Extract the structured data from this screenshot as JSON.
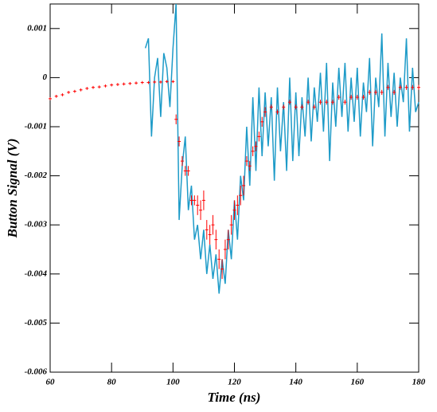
{
  "chart_data": {
    "type": "line",
    "x_label": "Time (ns)",
    "y_label": "Button Signal (V)",
    "xlim": [
      60,
      180
    ],
    "xticks": [
      60,
      80,
      100,
      120,
      140,
      160,
      180
    ],
    "ylim": [
      -0.006,
      0.0015
    ],
    "yticks": [
      0.001,
      0,
      -0.001,
      -0.002,
      -0.003,
      -0.004,
      -0.005,
      -0.006
    ],
    "grid": false,
    "series": [
      {
        "type": "line",
        "color": "#1e9bc8",
        "x": [
          91,
          92,
          93,
          94,
          95,
          96,
          97,
          98,
          99,
          100,
          101,
          102,
          103,
          104,
          105,
          106,
          107,
          108,
          109,
          110,
          111,
          112,
          113,
          114,
          115,
          116,
          117,
          118,
          119,
          120,
          121,
          122,
          123,
          124,
          125,
          126,
          127,
          128,
          129,
          130,
          131,
          132,
          133,
          134,
          135,
          136,
          137,
          138,
          139,
          140,
          141,
          142,
          143,
          144,
          145,
          146,
          147,
          148,
          149,
          150,
          151,
          152,
          153,
          154,
          155,
          156,
          157,
          158,
          159,
          160,
          161,
          162,
          163,
          164,
          165,
          166,
          167,
          168,
          169,
          170,
          171,
          172,
          173,
          174,
          175,
          176,
          177,
          178,
          179,
          180
        ],
        "values": [
          0.0006,
          0.0008,
          -0.0012,
          0.0,
          0.0004,
          -0.0008,
          0.0005,
          0.0002,
          -0.0006,
          0.0006,
          0.0015,
          -0.0029,
          -0.0018,
          -0.0012,
          -0.0027,
          -0.0022,
          -0.0033,
          -0.003,
          -0.0037,
          -0.0031,
          -0.004,
          -0.0034,
          -0.0041,
          -0.0036,
          -0.0044,
          -0.0037,
          -0.0042,
          -0.0031,
          -0.0037,
          -0.0025,
          -0.0033,
          -0.002,
          -0.0025,
          -0.001,
          -0.0022,
          -0.0004,
          -0.0019,
          -0.0002,
          -0.0016,
          -0.0003,
          -0.0014,
          -0.0004,
          -0.0021,
          -0.0002,
          -0.0015,
          -0.0005,
          -0.0019,
          0.0,
          -0.0017,
          -0.0003,
          -0.0016,
          -0.0004,
          -0.0012,
          0.0,
          -0.0013,
          -0.0002,
          -0.0009,
          0.0001,
          -0.0011,
          0.0003,
          -0.0017,
          -0.0001,
          -0.001,
          0.0002,
          -0.0008,
          0.0003,
          -0.0011,
          0.0,
          -0.0009,
          0.0002,
          -0.0012,
          -0.0001,
          -0.0007,
          0.0004,
          -0.0014,
          0.0,
          -0.0006,
          0.0009,
          -0.0012,
          0.0003,
          -0.0008,
          0.0001,
          -0.001,
          0.0,
          -0.0005,
          0.0008,
          -0.0011,
          0.0002,
          -0.0007,
          -0.0005
        ]
      },
      {
        "type": "errorbar",
        "color": "#ff0000",
        "x": [
          60,
          62,
          64,
          66,
          68,
          70,
          72,
          74,
          76,
          78,
          80,
          82,
          84,
          86,
          88,
          90,
          92,
          94,
          96,
          98,
          100,
          101,
          102,
          103,
          104,
          105,
          106,
          107,
          108,
          109,
          110,
          111,
          112,
          113,
          114,
          115,
          116,
          117,
          118,
          119,
          120,
          121,
          122,
          123,
          124,
          125,
          126,
          127,
          128,
          129,
          130,
          132,
          134,
          136,
          138,
          140,
          142,
          144,
          146,
          148,
          150,
          152,
          154,
          156,
          158,
          160,
          162,
          164,
          166,
          168,
          170,
          172,
          174,
          176,
          178,
          180
        ],
        "values": [
          -0.00043,
          -0.00038,
          -0.00035,
          -0.0003,
          -0.00028,
          -0.00025,
          -0.00022,
          -0.0002,
          -0.00019,
          -0.00017,
          -0.00015,
          -0.00014,
          -0.00013,
          -0.00012,
          -0.00011,
          -0.0001,
          -0.0001,
          -9e-05,
          -9e-05,
          -8e-05,
          -8e-05,
          -0.00085,
          -0.0013,
          -0.0017,
          -0.0019,
          -0.0019,
          -0.0025,
          -0.0025,
          -0.0026,
          -0.0027,
          -0.0025,
          -0.0031,
          -0.0032,
          -0.003,
          -0.0033,
          -0.0037,
          -0.0039,
          -0.0035,
          -0.0033,
          -0.003,
          -0.0027,
          -0.0026,
          -0.0024,
          -0.0022,
          -0.0017,
          -0.0018,
          -0.0015,
          -0.0014,
          -0.0012,
          -0.0009,
          -0.0007,
          -0.0006,
          -0.0007,
          -0.0006,
          -0.0005,
          -0.0006,
          -0.0006,
          -0.0005,
          -0.0006,
          -0.0005,
          -0.0005,
          -0.0005,
          -0.0004,
          -0.0005,
          -0.0004,
          -0.0004,
          -0.0004,
          -0.0003,
          -0.0003,
          -0.0003,
          -0.0002,
          -0.0003,
          -0.0002,
          -0.0002,
          -0.0002,
          -0.0002
        ],
        "errors": [
          3e-05,
          3e-05,
          3e-05,
          3e-05,
          3e-05,
          3e-05,
          3e-05,
          3e-05,
          3e-05,
          3e-05,
          3e-05,
          3e-05,
          3e-05,
          3e-05,
          3e-05,
          3e-05,
          3e-05,
          3e-05,
          3e-05,
          3e-05,
          3e-05,
          0.0001,
          0.0001,
          0.0001,
          0.0001,
          0.0001,
          0.0001,
          0.0001,
          0.0002,
          0.0002,
          0.0002,
          0.0002,
          0.0002,
          0.0002,
          0.0002,
          0.0002,
          0.0002,
          0.0002,
          0.0002,
          0.0002,
          0.0002,
          0.0002,
          0.0002,
          0.0002,
          0.0001,
          0.0001,
          0.0001,
          0.0001,
          0.0001,
          0.0001,
          0.0001,
          5e-05,
          5e-05,
          5e-05,
          5e-05,
          5e-05,
          5e-05,
          5e-05,
          5e-05,
          5e-05,
          5e-05,
          5e-05,
          5e-05,
          5e-05,
          5e-05,
          5e-05,
          5e-05,
          5e-05,
          5e-05,
          5e-05,
          5e-05,
          5e-05,
          5e-05,
          5e-05,
          5e-05,
          5e-05
        ]
      }
    ]
  }
}
